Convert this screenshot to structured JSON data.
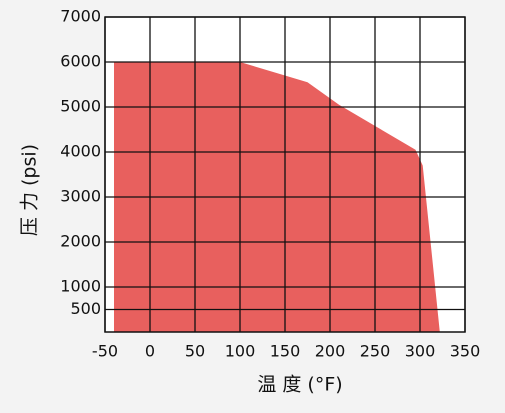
{
  "chart_data": {
    "type": "area",
    "x_label": "温 度 (°F)",
    "y_label": "压 力 (psi)",
    "x": [
      -40,
      -40,
      100,
      175,
      210,
      295,
      303,
      322
    ],
    "values": [
      0,
      6000,
      6000,
      5550,
      5050,
      4050,
      3700,
      0
    ],
    "color": "#e8605e",
    "xlim": [
      -50,
      350
    ],
    "xticks": [
      -50,
      0,
      50,
      100,
      150,
      200,
      250,
      300,
      350
    ],
    "ylim": [
      0,
      7000
    ],
    "yticks": [
      500,
      1000,
      2000,
      3000,
      4000,
      5000,
      6000,
      7000
    ],
    "grid": true
  }
}
